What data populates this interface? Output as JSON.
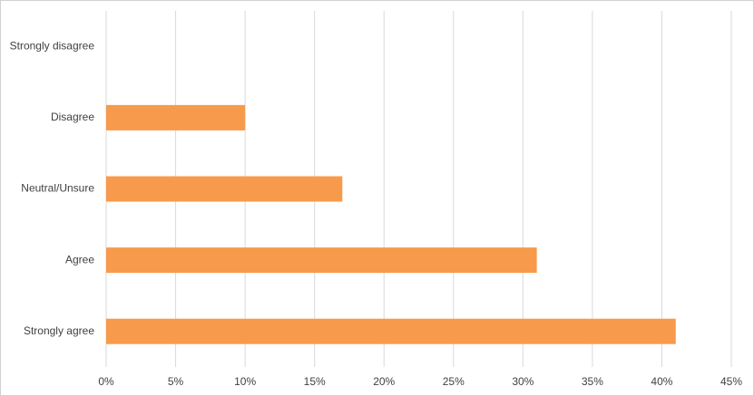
{
  "chart_data": {
    "type": "bar",
    "orientation": "horizontal",
    "categories": [
      "Strongly disagree",
      "Disagree",
      "Neutral/Unsure",
      "Agree",
      "Strongly agree"
    ],
    "values": [
      0,
      10,
      17,
      31,
      41
    ],
    "color": "#f79a4b",
    "xlim": [
      0,
      45
    ],
    "xticks": [
      {
        "value": 0,
        "label": "0%"
      },
      {
        "value": 5,
        "label": "5%"
      },
      {
        "value": 10,
        "label": "10%"
      },
      {
        "value": 15,
        "label": "15%"
      },
      {
        "value": 20,
        "label": "20%"
      },
      {
        "value": 25,
        "label": "25%"
      },
      {
        "value": 30,
        "label": "30%"
      },
      {
        "value": 35,
        "label": "35%"
      },
      {
        "value": 40,
        "label": "40%"
      },
      {
        "value": 45,
        "label": "45%"
      }
    ],
    "grid": true
  }
}
